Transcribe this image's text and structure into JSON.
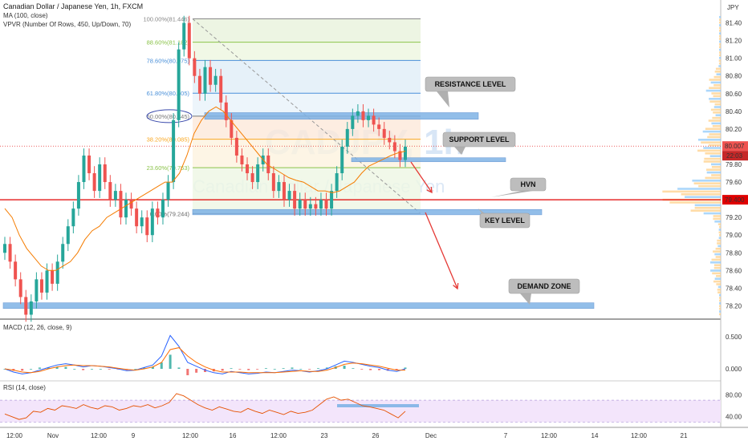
{
  "header": {
    "symbol_line": "Canadian Dollar / Japanese Yen, 1h, FXCM",
    "ma_line": "MA (100, close)",
    "vpvr_line": "VPVR (Number Of Rows, 450, Up/Down, 70)",
    "currency": "JPY",
    "watermark_symbol": "CADJPY, 1h",
    "watermark_name": "Canadian Dollar / Japanese Yen"
  },
  "panels": {
    "macd_title": "MACD (12, 26, close, 9)",
    "rsi_title": "RSI (14, close)"
  },
  "colors": {
    "up": "#26a69a",
    "down": "#ef5350",
    "ma": "#f57c00",
    "zone": "#7fb3e6",
    "macd": "#2962ff",
    "signal": "#ff6d00",
    "rsi": "#e65100",
    "rsi_band": "#f3e5fb",
    "price_badge": "#ef5350",
    "hline": "#e00000",
    "volume": "#ffd08a",
    "volume2": "#90caf9"
  },
  "chart_data": [
    {
      "type": "candlestick",
      "title": "Canadian Dollar / Japanese Yen, 1h, FXCM",
      "ylim": [
        78.05,
        81.55
      ],
      "y_ticks": [
        81.4,
        81.2,
        81.0,
        80.8,
        80.6,
        80.4,
        80.2,
        80.0,
        79.8,
        79.6,
        79.2,
        79.0,
        78.8,
        78.6,
        78.4,
        78.2
      ],
      "x_ticks": [
        "12:00",
        "Nov",
        "12:00",
        "9",
        "12:00",
        "16",
        "12:00",
        "23",
        "26",
        "Dec",
        "7",
        "12:00",
        "14",
        "12:00",
        "21"
      ],
      "current_price": "80.007",
      "countdown": "22:03",
      "hvn_price": "79.400",
      "fib_levels": [
        {
          "label": "100.00%(81.446)",
          "value": 81.446
        },
        {
          "label": "88.60%(81.182)",
          "value": 81.182
        },
        {
          "label": "78.60%(80.975)",
          "value": 80.975
        },
        {
          "label": "61.80%(80.605)",
          "value": 80.605
        },
        {
          "label": "50.00%(80.345)",
          "value": 80.345
        },
        {
          "label": "38.20%(80.085)",
          "value": 80.085
        },
        {
          "label": "23.60%(79.763)",
          "value": 79.763
        },
        {
          "label": "0.00%(79.244)",
          "value": 79.244
        }
      ],
      "annotations": [
        "RESISTANCE LEVEL",
        "SUPPORT LEVEL",
        "HVN",
        "KEY LEVEL",
        "DEMAND ZONE"
      ],
      "zones": [
        {
          "name": "RESISTANCE LEVEL",
          "low": 80.31,
          "high": 80.385
        },
        {
          "name": "SUPPORT LEVEL",
          "low": 79.83,
          "high": 79.875
        },
        {
          "name": "KEY LEVEL",
          "low": 79.23,
          "high": 79.29
        },
        {
          "name": "DEMAND ZONE",
          "low": 78.17,
          "high": 78.235
        }
      ],
      "closes": [
        78.9,
        78.7,
        78.5,
        78.3,
        78.1,
        78.25,
        78.5,
        78.35,
        78.6,
        78.45,
        78.7,
        78.9,
        79.1,
        79.3,
        79.6,
        79.9,
        79.7,
        79.5,
        79.8,
        79.6,
        79.4,
        79.5,
        79.2,
        79.4,
        79.3,
        79.1,
        79.2,
        79.0,
        79.3,
        79.2,
        79.4,
        79.6,
        80.3,
        81.1,
        81.4,
        81.0,
        80.8,
        80.6,
        80.9,
        80.7,
        80.8,
        80.5,
        80.3,
        80.1,
        79.9,
        79.8,
        79.7,
        79.6,
        79.8,
        79.9,
        79.7,
        79.5,
        79.6,
        79.4,
        79.5,
        79.3,
        79.4,
        79.3,
        79.35,
        79.3,
        79.4,
        79.3,
        79.5,
        79.7,
        80.0,
        80.2,
        80.35,
        80.4,
        80.3,
        80.35,
        80.25,
        80.2,
        80.1,
        80.05,
        79.95,
        79.85,
        80.0
      ],
      "ma100": [
        79.3,
        79.2,
        79.0,
        78.85,
        78.75,
        78.65,
        78.6,
        78.6,
        78.65,
        78.7,
        78.8,
        78.95,
        79.05,
        79.1,
        79.2,
        79.25,
        79.3,
        79.35,
        79.4,
        79.45,
        79.5,
        79.55,
        79.6,
        79.6,
        79.7,
        79.9,
        80.15,
        80.3,
        80.4,
        80.45,
        80.4,
        80.3,
        80.2,
        80.1,
        80.0,
        79.9,
        79.8,
        79.75,
        79.7,
        79.65,
        79.62,
        79.6,
        79.55,
        79.5,
        79.5,
        79.48,
        79.5,
        79.55,
        79.6,
        79.7,
        79.78,
        79.82,
        79.86,
        79.9,
        79.93,
        79.95
      ]
    },
    {
      "type": "line",
      "title": "MACD (12, 26, close, 9)",
      "ylim": [
        -0.15,
        0.6
      ],
      "y_ticks": [
        0.5,
        0.0
      ],
      "series": [
        {
          "name": "MACD",
          "values": [
            0.0,
            -0.05,
            -0.08,
            -0.06,
            -0.02,
            0.02,
            0.06,
            0.08,
            0.06,
            0.03,
            0.05,
            0.04,
            0.02,
            0.0,
            -0.03,
            -0.02,
            0.02,
            0.06,
            0.2,
            0.52,
            0.35,
            0.1,
            0.04,
            -0.02,
            -0.06,
            -0.08,
            -0.04,
            -0.06,
            -0.08,
            -0.07,
            -0.05,
            -0.06,
            -0.04,
            -0.02,
            -0.03,
            -0.05,
            -0.03,
            0.0,
            0.06,
            0.12,
            0.1,
            0.07,
            0.04,
            0.02,
            -0.02,
            -0.04,
            0.0
          ]
        },
        {
          "name": "Signal",
          "values": [
            0.0,
            -0.02,
            -0.05,
            -0.06,
            -0.04,
            0.0,
            0.03,
            0.05,
            0.06,
            0.05,
            0.05,
            0.04,
            0.03,
            0.01,
            -0.01,
            -0.02,
            0.0,
            0.03,
            0.1,
            0.3,
            0.33,
            0.2,
            0.1,
            0.03,
            -0.02,
            -0.05,
            -0.05,
            -0.05,
            -0.06,
            -0.06,
            -0.06,
            -0.06,
            -0.05,
            -0.04,
            -0.03,
            -0.04,
            -0.04,
            -0.02,
            0.02,
            0.07,
            0.09,
            0.08,
            0.06,
            0.04,
            0.01,
            -0.02,
            -0.02
          ]
        }
      ]
    },
    {
      "type": "line",
      "title": "RSI (14, close)",
      "ylim": [
        25,
        95
      ],
      "y_ticks": [
        80.0,
        40.0
      ],
      "series": [
        {
          "name": "RSI",
          "values": [
            45,
            40,
            35,
            38,
            50,
            48,
            55,
            52,
            60,
            58,
            55,
            62,
            57,
            54,
            60,
            58,
            52,
            55,
            60,
            58,
            62,
            56,
            60,
            66,
            82,
            78,
            70,
            62,
            56,
            52,
            58,
            54,
            50,
            48,
            55,
            50,
            46,
            52,
            48,
            44,
            50,
            46,
            48,
            52,
            62,
            72,
            76,
            70,
            72,
            66,
            60,
            58,
            55,
            52,
            45,
            38,
            50
          ]
        }
      ]
    }
  ]
}
